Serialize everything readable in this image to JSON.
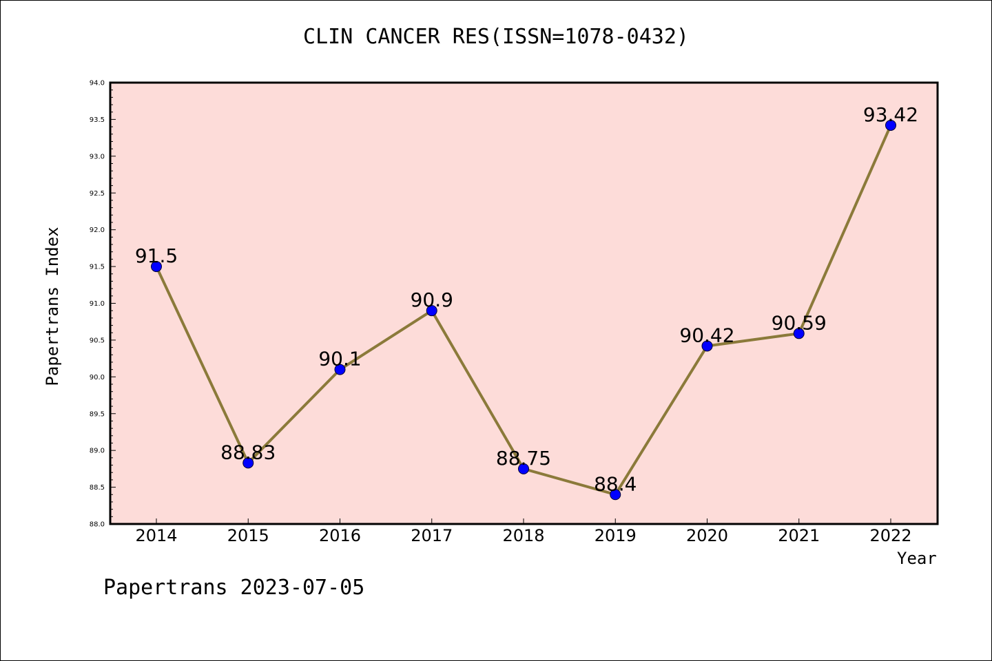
{
  "colors": {
    "plot_background": "#fddcd9",
    "line": "#8b7a3a",
    "marker": "#0000ff",
    "axis": "#000000"
  },
  "footer": "Papertrans 2023-07-05",
  "chart_data": {
    "type": "line",
    "title": "CLIN CANCER RES(ISSN=1078-0432)",
    "xlabel": "Year",
    "ylabel": "Papertrans Index",
    "categories": [
      "2014",
      "2015",
      "2016",
      "2017",
      "2018",
      "2019",
      "2020",
      "2021",
      "2022"
    ],
    "values": [
      91.5,
      88.83,
      90.1,
      90.9,
      88.75,
      88.4,
      90.42,
      90.59,
      93.42
    ],
    "data_labels": [
      "91.5",
      "88.83",
      "90.1",
      "90.9",
      "88.75",
      "88.4",
      "90.42",
      "90.59",
      "93.42"
    ],
    "ylim": [
      88.0,
      94.0
    ],
    "yticks": [
      "88.0",
      "88.5",
      "89.0",
      "89.5",
      "90.0",
      "90.5",
      "91.0",
      "91.5",
      "92.0",
      "92.5",
      "93.0",
      "93.5",
      "94.0"
    ],
    "grid": false,
    "legend": "none"
  }
}
